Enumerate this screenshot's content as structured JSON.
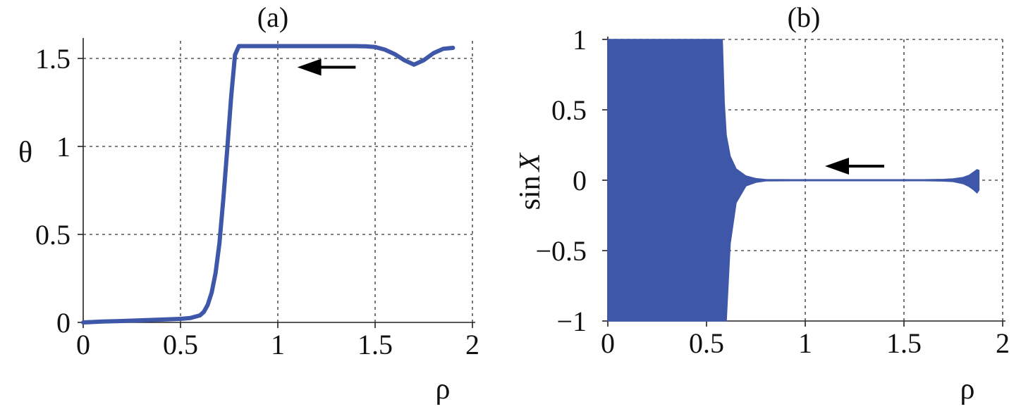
{
  "chart_data": [
    {
      "type": "line",
      "title": "(a)",
      "xlabel": "ρ",
      "ylabel": "θ",
      "xlim": [
        0,
        2
      ],
      "ylim": [
        0,
        1.6
      ],
      "xticks": [
        0,
        0.5,
        1,
        1.5,
        2
      ],
      "xtick_labels": [
        "0",
        "0.5",
        "1",
        "1.5",
        "2"
      ],
      "yticks": [
        0,
        0.5,
        1,
        1.5
      ],
      "ytick_labels": [
        "0",
        "0.5",
        "1",
        "1.5"
      ],
      "grid": true,
      "series_color": "#3f57a8",
      "series": [
        {
          "x": [
            0,
            0.1,
            0.2,
            0.3,
            0.4,
            0.5,
            0.55,
            0.6,
            0.62,
            0.64,
            0.66,
            0.68,
            0.7,
            0.72,
            0.74,
            0.76,
            0.78,
            0.8,
            0.9,
            1.0,
            1.1,
            1.2,
            1.3,
            1.4,
            1.45,
            1.5,
            1.55,
            1.6,
            1.65,
            1.7,
            1.75,
            1.8,
            1.85,
            1.9
          ],
          "y": [
            0.0,
            0.005,
            0.008,
            0.012,
            0.016,
            0.02,
            0.025,
            0.04,
            0.06,
            0.1,
            0.17,
            0.28,
            0.45,
            0.7,
            0.98,
            1.28,
            1.52,
            1.57,
            1.57,
            1.57,
            1.57,
            1.57,
            1.57,
            1.57,
            1.569,
            1.565,
            1.55,
            1.525,
            1.49,
            1.465,
            1.49,
            1.53,
            1.555,
            1.56
          ]
        }
      ],
      "annotation": {
        "type": "arrow",
        "direction": "left",
        "x_from": 1.4,
        "x_to": 1.1,
        "y": 1.45
      }
    },
    {
      "type": "area",
      "title": "(b)",
      "xlabel": "ρ",
      "ylabel": "sin X",
      "xlim": [
        0,
        2
      ],
      "ylim": [
        -1,
        1
      ],
      "xticks": [
        0,
        0.5,
        1,
        1.5,
        2
      ],
      "xtick_labels": [
        "0",
        "0.5",
        "1",
        "1.5",
        "2"
      ],
      "yticks": [
        -1,
        -0.5,
        0,
        0.5,
        1
      ],
      "ytick_labels": [
        "−1",
        "−0.5",
        "0",
        "0.5",
        "1"
      ],
      "grid": true,
      "series_color": "#3f57a8",
      "series": [
        {
          "x": [
            0,
            0.3,
            0.58,
            0.59,
            0.6,
            0.62,
            0.65,
            0.7,
            0.75,
            0.8,
            1.0,
            1.2,
            1.4,
            1.6,
            1.7,
            1.75,
            1.8,
            1.83,
            1.85,
            1.87,
            1.88
          ],
          "upper": [
            1,
            1,
            1,
            0.55,
            0.32,
            0.17,
            0.08,
            0.03,
            0.012,
            0.005,
            0.003,
            0.003,
            0.003,
            0.004,
            0.006,
            0.01,
            0.02,
            0.035,
            0.055,
            0.075,
            0.07
          ],
          "lower": [
            -1,
            -1,
            -1,
            -1,
            -1,
            -0.45,
            -0.16,
            -0.04,
            -0.015,
            -0.005,
            -0.003,
            -0.003,
            -0.003,
            -0.004,
            -0.006,
            -0.01,
            -0.025,
            -0.045,
            -0.065,
            -0.09,
            -0.07
          ]
        }
      ],
      "annotation": {
        "type": "arrow",
        "direction": "left",
        "x_from": 1.4,
        "x_to": 1.1,
        "y": 0.1
      }
    }
  ]
}
